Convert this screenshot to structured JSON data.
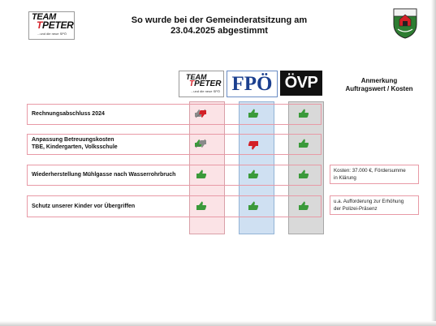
{
  "header": {
    "title_line1": "So wurde bei der Gemeinderatsitzung am",
    "title_line2": "23.04.2025 abgestimmt"
  },
  "logo": {
    "team_line": "TEAM",
    "peter_line": "PETER",
    "tagline": "...und die neue SPÖ"
  },
  "parties": {
    "team": {
      "name_line1": "TEAM",
      "name_line2": "PETER",
      "tagline": "...und die neue SPÖ",
      "color": "#d32027"
    },
    "fpo": {
      "name": "FPÖ",
      "color": "#1b3f8f"
    },
    "ovp": {
      "name": "ÖVP",
      "color": "#111111"
    }
  },
  "notes_header": {
    "line1": "Anmerkung",
    "line2": "Auftragswert / Kosten"
  },
  "agenda": [
    {
      "label": "Rechnungsabschluss 2024",
      "votes": {
        "team": "split",
        "fpo": "yes",
        "ovp": "yes"
      },
      "note": ""
    },
    {
      "label_line1": "Anpassung Betreuungskosten",
      "label_line2": "TBE, Kindergarten, Volksschule",
      "votes": {
        "team": "split",
        "fpo": "no",
        "ovp": "yes"
      },
      "note": ""
    },
    {
      "label": "Wiederherstellung Mühlgasse nach Wasserrohrbruch",
      "votes": {
        "team": "yes",
        "fpo": "yes",
        "ovp": "yes"
      },
      "note_line1": "Kosten: 37.000 €, Fördersumme",
      "note_line2": "in Klärung"
    },
    {
      "label": "Schutz unserer Kinder vor Übergriffen",
      "votes": {
        "team": "yes",
        "fpo": "yes",
        "ovp": "yes"
      },
      "note_line1": "u.a. Aufforderung zur Erhöhung",
      "note_line2": "der Polizei-Präsenz"
    }
  ],
  "icons": {
    "yes": "thumbs-up-icon",
    "no": "thumbs-down-icon",
    "split": "thumbs-split-icon",
    "yes_color": "#3a9a3a",
    "no_color": "#d32027",
    "neutral_color": "#8a8a8a"
  }
}
